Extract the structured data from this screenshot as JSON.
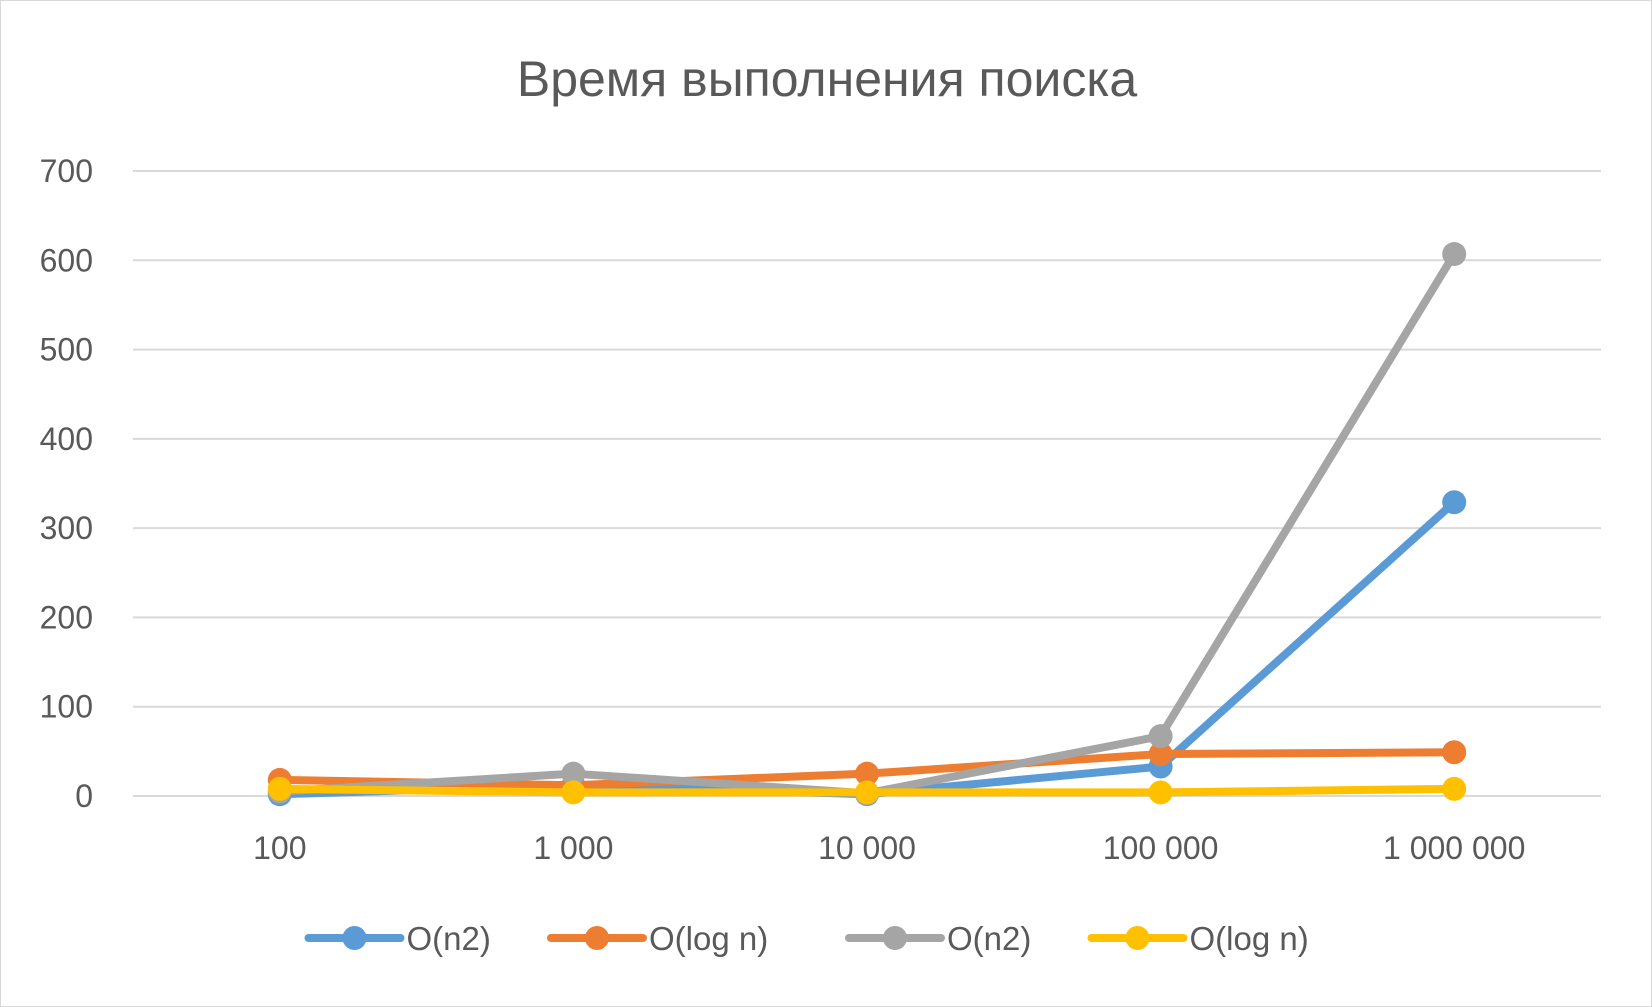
{
  "chart_data": {
    "type": "line",
    "title": "Время выполнения поиска",
    "xlabel": "",
    "ylabel": "",
    "categories": [
      "100",
      "1 000",
      "10 000",
      "100 000",
      "1 000 000"
    ],
    "ylim": [
      0,
      700
    ],
    "yticks": [
      0,
      100,
      200,
      300,
      400,
      500,
      600,
      700
    ],
    "ytick_labels": [
      "0",
      "100",
      "200",
      "300",
      "400",
      "500",
      "600",
      "700"
    ],
    "grid": true,
    "legend_position": "bottom",
    "series": [
      {
        "name": "O(n2)",
        "color": "#5b9bd5",
        "values": [
          2,
          12,
          2,
          33,
          329
        ]
      },
      {
        "name": "O(log n)",
        "color": "#ed7d31",
        "values": [
          18,
          12,
          25,
          47,
          49
        ]
      },
      {
        "name": "O(n2)",
        "color": "#a5a5a5",
        "values": [
          5,
          25,
          3,
          67,
          607
        ]
      },
      {
        "name": "O(log n)",
        "color": "#ffc000",
        "values": [
          8,
          4,
          4,
          4,
          8
        ]
      }
    ]
  }
}
